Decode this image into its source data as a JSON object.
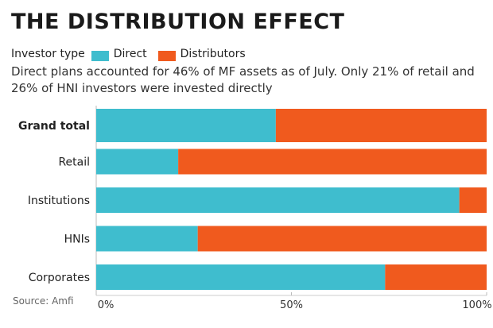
{
  "chart_data": {
    "type": "bar",
    "stacked": true,
    "orientation": "horizontal",
    "title": "THE DISTRIBUTION EFFECT",
    "subtitle": "Direct plans accounted for 46% of MF assets as of July. Only 21% of retail and 26% of HNI investors were invested directly",
    "legend_title": "Investor type",
    "categories": [
      "Grand total",
      "Retail",
      "Institutions",
      "HNIs",
      "Corporates"
    ],
    "series": [
      {
        "name": "Direct",
        "color": "#3fbdce",
        "values": [
          46,
          21,
          93,
          26,
          74
        ]
      },
      {
        "name": "Distributors",
        "color": "#f05a1e",
        "values": [
          54,
          79,
          7,
          74,
          26
        ]
      }
    ],
    "xlim": [
      0,
      100
    ],
    "xticks": [
      "0%",
      "50%",
      "100%"
    ],
    "legend_position": "top-left",
    "source": "Source: Amfi"
  }
}
